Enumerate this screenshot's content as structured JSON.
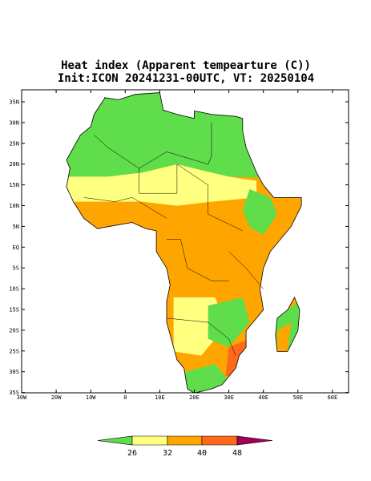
{
  "title": "Heat index (Apparent tempearture (C))",
  "subtitle": "Init:ICON 20241231-00UTC, VT: 20250104",
  "lat_labels": [
    "35N",
    "30N",
    "25N",
    "20N",
    "15N",
    "10N",
    "5N",
    "EQ",
    "5S",
    "10S",
    "15S",
    "20S",
    "25S",
    "30S",
    "35S"
  ],
  "lon_labels": [
    "30W",
    "20W",
    "10W",
    "0",
    "10E",
    "20E",
    "30E",
    "40E",
    "50E",
    "60E"
  ],
  "colorbar": {
    "labels": [
      26,
      32,
      40,
      48
    ]
  }
}
